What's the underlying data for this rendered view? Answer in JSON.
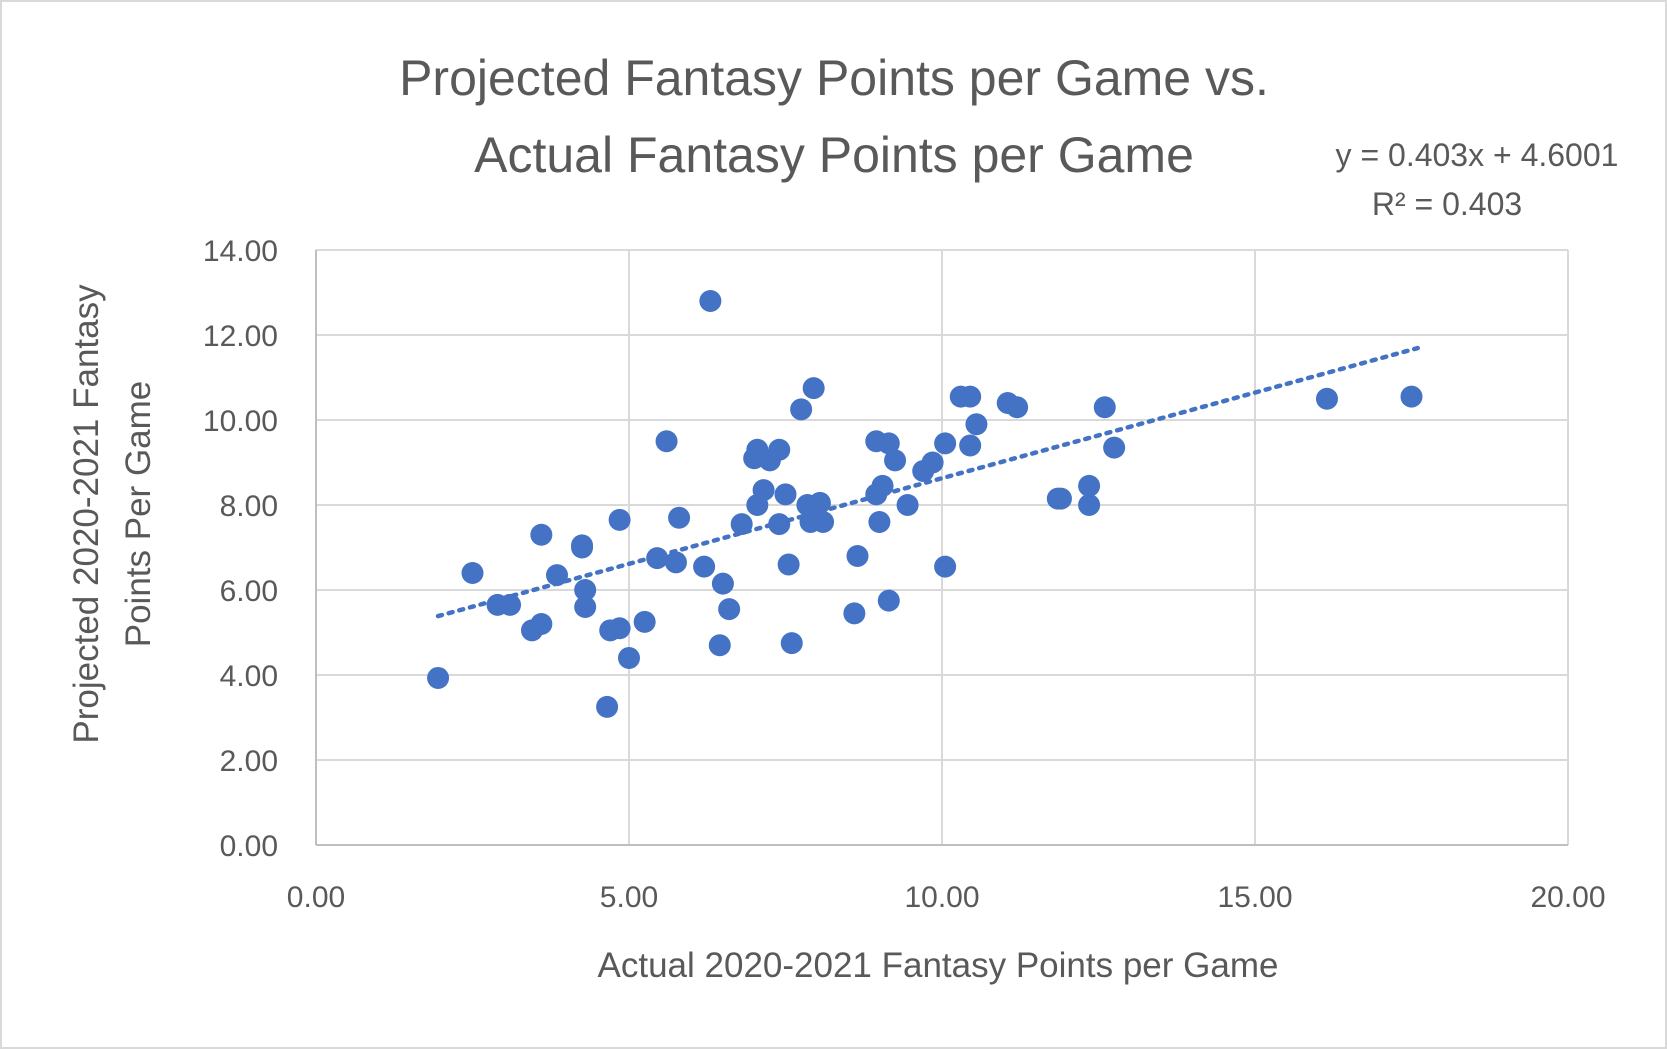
{
  "chart_data": {
    "type": "scatter",
    "title_lines": [
      "Projected Fantasy Points per Game vs.",
      "Actual Fantasy Points per Game"
    ],
    "xlabel": "Actual 2020-2021 Fantasy Points per Game",
    "ylabel_lines": [
      "Projected 2020-2021 Fantasy",
      "Points Per Game"
    ],
    "xlim": [
      0,
      20
    ],
    "ylim": [
      0,
      14
    ],
    "x_ticks": [
      0,
      5,
      10,
      15,
      20
    ],
    "y_ticks": [
      0,
      2,
      4,
      6,
      8,
      10,
      12,
      14
    ],
    "x_tick_labels": [
      "0.00",
      "5.00",
      "10.00",
      "15.00",
      "20.00"
    ],
    "y_tick_labels": [
      "0.00",
      "2.00",
      "4.00",
      "6.00",
      "8.00",
      "10.00",
      "12.00",
      "14.00"
    ],
    "grid": true,
    "marker_color": "#4472c4",
    "trendline": {
      "type": "linear",
      "slope": 0.403,
      "intercept": 4.6001,
      "x_range": [
        1.95,
        17.6
      ],
      "style": "dotted",
      "color": "#4472c4",
      "equation_text": "y = 0.403x + 4.6001",
      "r2_text": "R² = 0.403"
    },
    "series": [
      {
        "points": [
          [
            1.95,
            3.93
          ],
          [
            2.5,
            6.4
          ],
          [
            2.9,
            5.65
          ],
          [
            3.1,
            5.65
          ],
          [
            3.45,
            5.05
          ],
          [
            3.6,
            5.2
          ],
          [
            3.6,
            7.3
          ],
          [
            3.85,
            6.35
          ],
          [
            4.25,
            7.0
          ],
          [
            4.25,
            7.05
          ],
          [
            4.3,
            5.6
          ],
          [
            4.3,
            6.0
          ],
          [
            4.65,
            3.25
          ],
          [
            4.7,
            5.05
          ],
          [
            4.85,
            5.1
          ],
          [
            4.85,
            7.65
          ],
          [
            5.0,
            4.4
          ],
          [
            5.25,
            5.25
          ],
          [
            5.45,
            6.75
          ],
          [
            5.6,
            9.5
          ],
          [
            5.75,
            6.65
          ],
          [
            5.8,
            7.7
          ],
          [
            6.2,
            6.55
          ],
          [
            6.3,
            12.8
          ],
          [
            6.45,
            4.7
          ],
          [
            6.5,
            6.15
          ],
          [
            6.6,
            5.55
          ],
          [
            6.8,
            7.55
          ],
          [
            7.0,
            9.1
          ],
          [
            7.05,
            8.0
          ],
          [
            7.05,
            9.3
          ],
          [
            7.15,
            8.35
          ],
          [
            7.25,
            9.05
          ],
          [
            7.4,
            9.3
          ],
          [
            7.4,
            7.55
          ],
          [
            7.5,
            8.25
          ],
          [
            7.55,
            6.6
          ],
          [
            7.6,
            4.75
          ],
          [
            7.75,
            10.25
          ],
          [
            7.85,
            8.0
          ],
          [
            7.9,
            7.6
          ],
          [
            7.95,
            10.75
          ],
          [
            8.05,
            8.05
          ],
          [
            8.1,
            7.6
          ],
          [
            8.6,
            5.45
          ],
          [
            8.65,
            6.8
          ],
          [
            8.95,
            9.5
          ],
          [
            8.95,
            8.25
          ],
          [
            9.0,
            7.6
          ],
          [
            9.05,
            8.45
          ],
          [
            9.15,
            5.75
          ],
          [
            9.15,
            9.45
          ],
          [
            9.25,
            9.05
          ],
          [
            9.45,
            8.0
          ],
          [
            9.7,
            8.8
          ],
          [
            9.85,
            9.0
          ],
          [
            10.05,
            9.45
          ],
          [
            10.05,
            6.55
          ],
          [
            10.3,
            10.55
          ],
          [
            10.45,
            10.55
          ],
          [
            10.45,
            9.4
          ],
          [
            10.55,
            9.9
          ],
          [
            11.05,
            10.4
          ],
          [
            11.2,
            10.3
          ],
          [
            11.85,
            8.15
          ],
          [
            11.9,
            8.15
          ],
          [
            12.35,
            8.45
          ],
          [
            12.35,
            8.0
          ],
          [
            12.6,
            10.3
          ],
          [
            12.75,
            9.35
          ],
          [
            16.15,
            10.5
          ],
          [
            17.5,
            10.55
          ]
        ]
      }
    ]
  }
}
